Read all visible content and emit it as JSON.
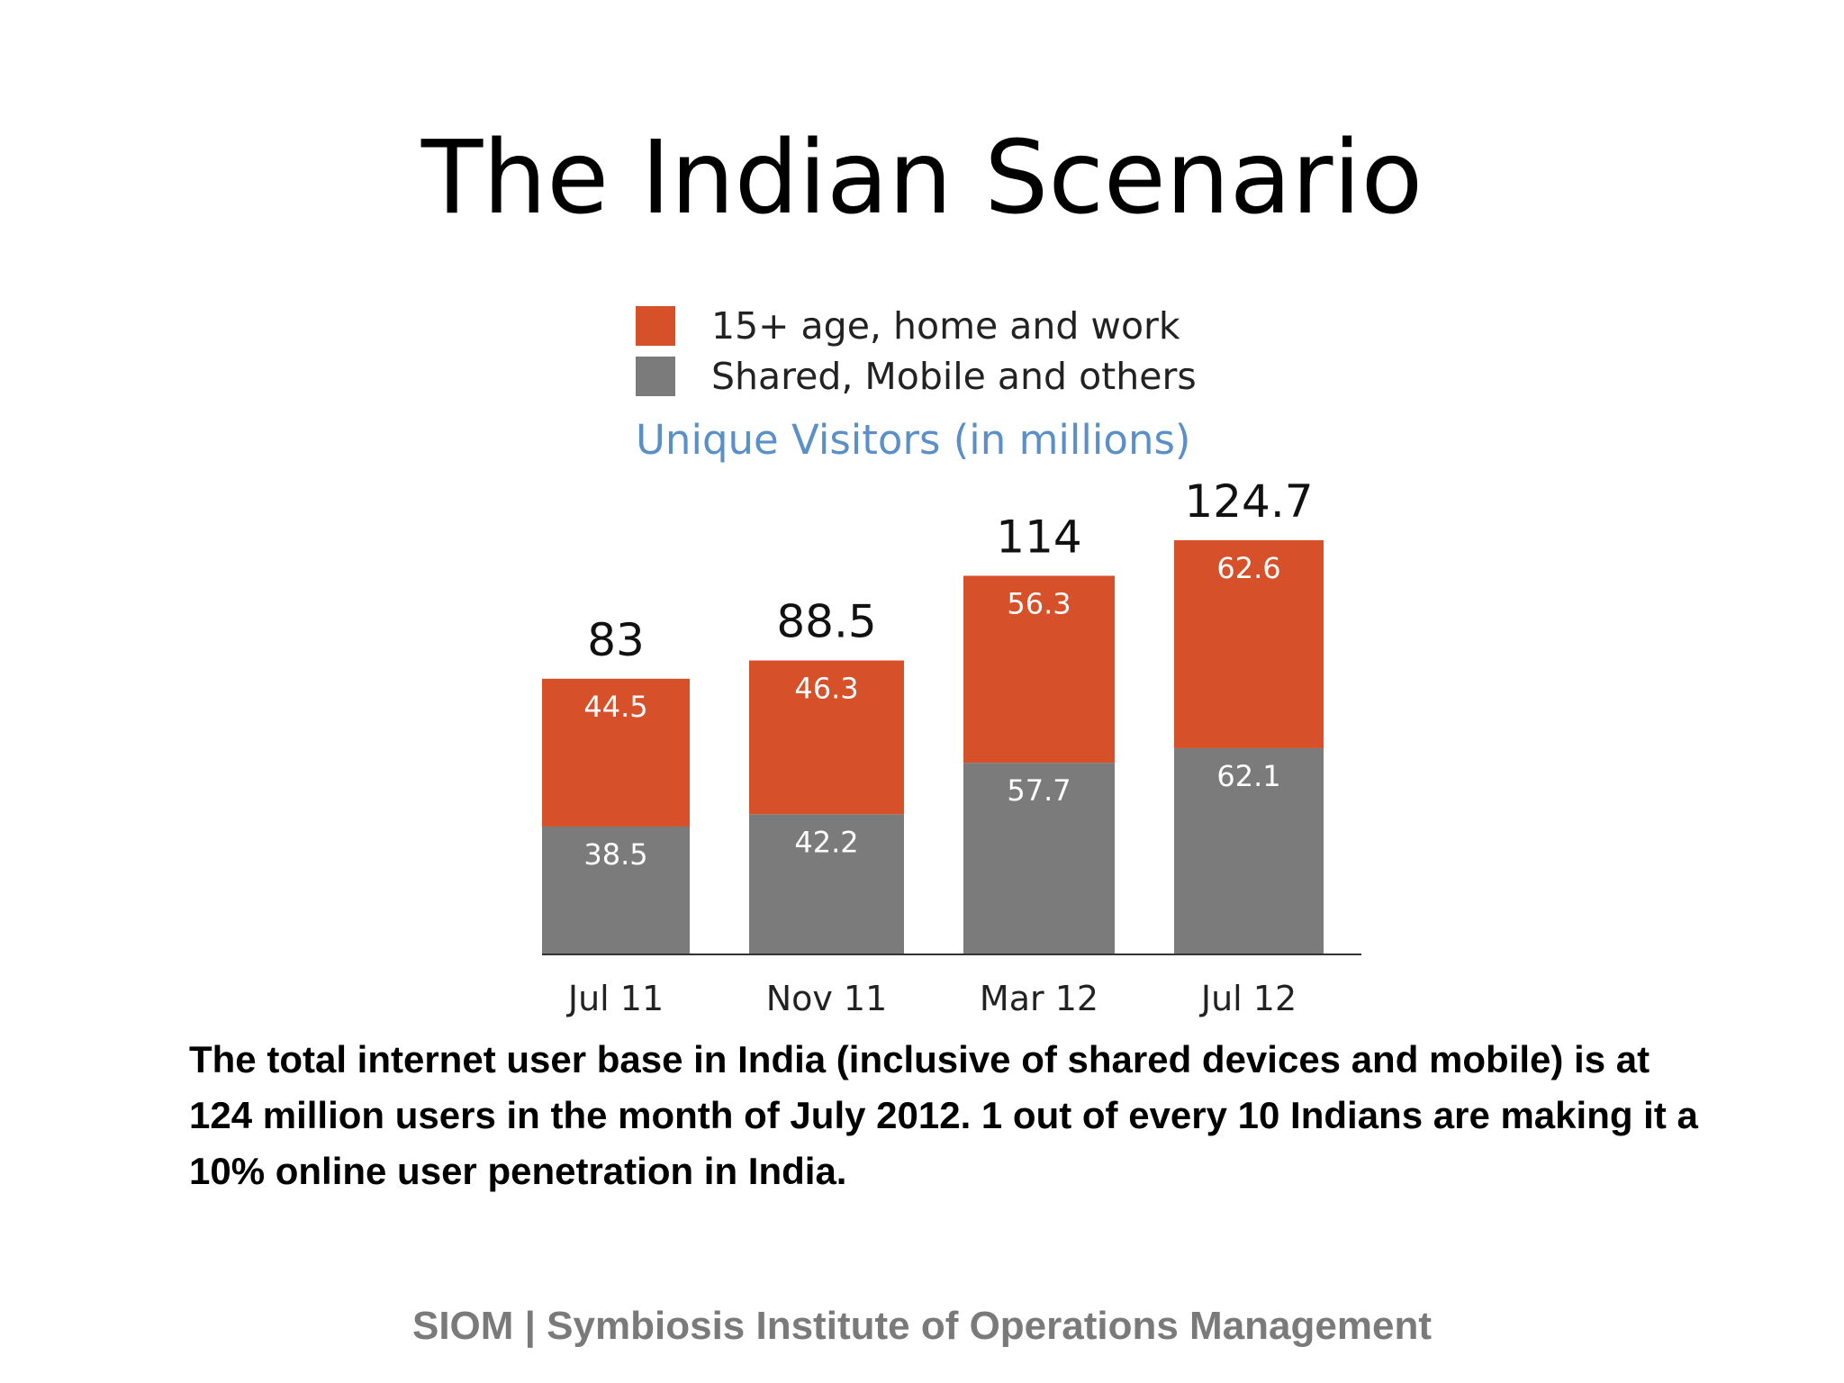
{
  "slide": {
    "title": "The Indian Scenario",
    "body": "The total internet user base in India (inclusive of shared devices and mobile) is at 124 million users in the month of July 2012. 1 out of every 10 Indians are making it a 10% online user penetration in India.",
    "footer": "SIOM | Symbiosis Institute of Operations Management"
  },
  "chart_data": {
    "type": "bar",
    "stacked": true,
    "title": "Unique Visitors (in millions)",
    "categories": [
      "Jul 11",
      "Nov 11",
      "Mar 12",
      "Jul 12"
    ],
    "totals": [
      "83",
      "88.5",
      "114",
      "124.7"
    ],
    "series": [
      {
        "name": "Shared, Mobile and others",
        "values": [
          38.5,
          42.2,
          57.7,
          62.1
        ],
        "labels": [
          "38.5",
          "42.2",
          "57.7",
          "62.1"
        ],
        "color": "#7b7b7b"
      },
      {
        "name": "15+ age, home and work",
        "values": [
          44.5,
          46.3,
          56.3,
          62.6
        ],
        "labels": [
          "44.5",
          "46.3",
          "56.3",
          "62.6"
        ],
        "color": "#d6512a"
      }
    ],
    "legend_order": [
      1,
      0
    ],
    "legend_position": "top",
    "grid": false,
    "ylim": [
      0,
      124.7
    ]
  }
}
